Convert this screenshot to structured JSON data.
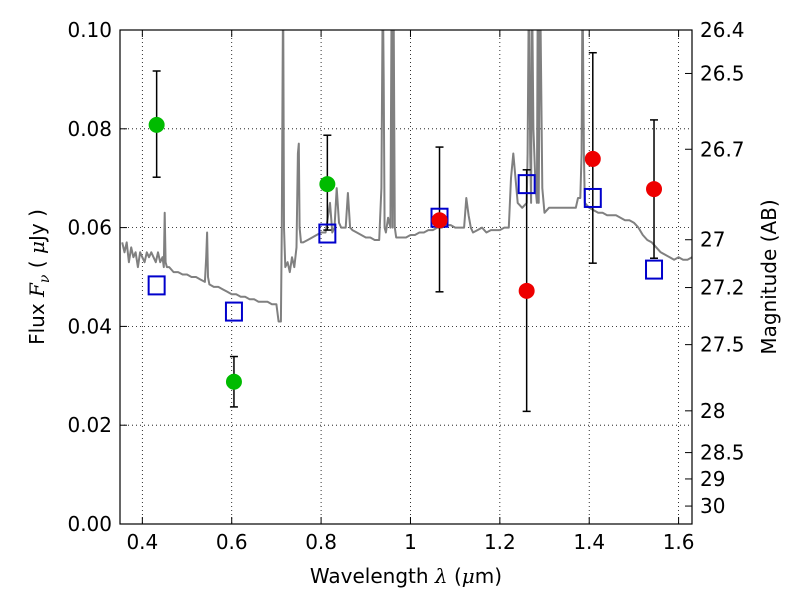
{
  "chart_data": {
    "type": "scatter",
    "xlabel": "Wavelength",
    "xlabel_symbol": "λ",
    "xlabel_unit_prefix": "(",
    "xlabel_unit_mu": "μ",
    "xlabel_unit_suffix": "m)",
    "ylabel_text": "Flux",
    "ylabel_symbol": "F",
    "ylabel_subscript": "ν",
    "ylabel_unit_open": "(",
    "ylabel_unit_mu": "μ",
    "ylabel_unit_text": "Jy",
    "ylabel_unit_close": ")",
    "y2label": "Magnitude (AB)",
    "xlim": [
      0.35,
      1.63
    ],
    "ylim": [
      0.0,
      0.1
    ],
    "x_ticks": [
      {
        "value": 0.4,
        "label": "0.4"
      },
      {
        "value": 0.6,
        "label": "0.6"
      },
      {
        "value": 0.8,
        "label": "0.8"
      },
      {
        "value": 1.0,
        "label": "1"
      },
      {
        "value": 1.2,
        "label": "1.2"
      },
      {
        "value": 1.4,
        "label": "1.4"
      },
      {
        "value": 1.6,
        "label": "1.6"
      }
    ],
    "y_ticks": [
      {
        "value": 0.0,
        "label": "0.00"
      },
      {
        "value": 0.02,
        "label": "0.02"
      },
      {
        "value": 0.04,
        "label": "0.04"
      },
      {
        "value": 0.06,
        "label": "0.06"
      },
      {
        "value": 0.08,
        "label": "0.08"
      },
      {
        "value": 0.1,
        "label": "0.10"
      }
    ],
    "mag_ticks": [
      {
        "value": 26.4,
        "label": "26.4"
      },
      {
        "value": 26.5,
        "label": "26.5"
      },
      {
        "value": 26.7,
        "label": "26.7"
      },
      {
        "value": 27.0,
        "label": "27"
      },
      {
        "value": 27.2,
        "label": "27.2"
      },
      {
        "value": 27.5,
        "label": "27.5"
      },
      {
        "value": 28.0,
        "label": "28"
      },
      {
        "value": 28.5,
        "label": "28.5"
      },
      {
        "value": 29.0,
        "label": "29"
      },
      {
        "value": 30.0,
        "label": "30"
      }
    ],
    "grid": true,
    "series": [
      {
        "name": "model-spectrum",
        "kind": "line",
        "color": "#808080",
        "x": [
          0.355,
          0.36,
          0.365,
          0.37,
          0.375,
          0.38,
          0.385,
          0.39,
          0.395,
          0.4,
          0.405,
          0.41,
          0.415,
          0.42,
          0.425,
          0.43,
          0.435,
          0.44,
          0.445,
          0.448,
          0.45,
          0.452,
          0.455,
          0.46,
          0.47,
          0.48,
          0.49,
          0.5,
          0.51,
          0.52,
          0.53,
          0.54,
          0.543,
          0.545,
          0.547,
          0.55,
          0.56,
          0.57,
          0.58,
          0.59,
          0.6,
          0.61,
          0.62,
          0.63,
          0.64,
          0.65,
          0.66,
          0.67,
          0.68,
          0.69,
          0.7,
          0.705,
          0.71,
          0.712,
          0.715,
          0.717,
          0.72,
          0.725,
          0.73,
          0.735,
          0.74,
          0.745,
          0.748,
          0.75,
          0.752,
          0.755,
          0.76,
          0.77,
          0.78,
          0.79,
          0.8,
          0.81,
          0.815,
          0.82,
          0.825,
          0.83,
          0.835,
          0.84,
          0.845,
          0.85,
          0.855,
          0.86,
          0.865,
          0.87,
          0.88,
          0.89,
          0.9,
          0.91,
          0.92,
          0.93,
          0.935,
          0.938,
          0.94,
          0.942,
          0.945,
          0.95,
          0.955,
          0.958,
          0.96,
          0.962,
          0.965,
          0.968,
          0.97,
          0.975,
          0.98,
          0.99,
          1.0,
          1.01,
          1.02,
          1.03,
          1.04,
          1.05,
          1.06,
          1.07,
          1.08,
          1.09,
          1.1,
          1.11,
          1.12,
          1.125,
          1.13,
          1.135,
          1.14,
          1.15,
          1.16,
          1.17,
          1.18,
          1.19,
          1.2,
          1.21,
          1.22,
          1.225,
          1.23,
          1.235,
          1.24,
          1.25,
          1.26,
          1.262,
          1.265,
          1.268,
          1.27,
          1.272,
          1.275,
          1.28,
          1.283,
          1.285,
          1.287,
          1.29,
          1.295,
          1.3,
          1.31,
          1.32,
          1.33,
          1.34,
          1.35,
          1.36,
          1.37,
          1.375,
          1.38,
          1.383,
          1.385,
          1.388,
          1.39,
          1.4,
          1.41,
          1.42,
          1.43,
          1.44,
          1.45,
          1.46,
          1.47,
          1.48,
          1.49,
          1.5,
          1.51,
          1.52,
          1.53,
          1.54,
          1.55,
          1.56,
          1.57,
          1.58,
          1.59,
          1.6,
          1.61,
          1.62,
          1.63
        ],
        "y": [
          0.057,
          0.055,
          0.057,
          0.053,
          0.056,
          0.054,
          0.055,
          0.052,
          0.055,
          0.054,
          0.053,
          0.055,
          0.054,
          0.055,
          0.054,
          0.053,
          0.055,
          0.053,
          0.054,
          0.052,
          0.063,
          0.053,
          0.052,
          0.052,
          0.051,
          0.051,
          0.0505,
          0.0505,
          0.05,
          0.05,
          0.0495,
          0.049,
          0.054,
          0.059,
          0.05,
          0.0485,
          0.048,
          0.048,
          0.0475,
          0.047,
          0.0465,
          0.0465,
          0.046,
          0.046,
          0.0455,
          0.0455,
          0.045,
          0.045,
          0.045,
          0.0445,
          0.0445,
          0.041,
          0.041,
          0.06,
          0.11,
          0.06,
          0.052,
          0.053,
          0.051,
          0.054,
          0.052,
          0.056,
          0.075,
          0.077,
          0.06,
          0.057,
          0.057,
          0.0575,
          0.058,
          0.0585,
          0.059,
          0.059,
          0.062,
          0.065,
          0.059,
          0.06,
          0.068,
          0.061,
          0.06,
          0.06,
          0.06,
          0.067,
          0.06,
          0.0595,
          0.059,
          0.0585,
          0.058,
          0.058,
          0.0575,
          0.0575,
          0.068,
          0.11,
          0.09,
          0.06,
          0.059,
          0.062,
          0.06,
          0.11,
          0.06,
          0.11,
          0.06,
          0.058,
          0.058,
          0.058,
          0.058,
          0.058,
          0.0585,
          0.0585,
          0.059,
          0.059,
          0.0595,
          0.0595,
          0.06,
          0.06,
          0.0605,
          0.0605,
          0.06,
          0.06,
          0.06,
          0.066,
          0.0625,
          0.06,
          0.059,
          0.0595,
          0.06,
          0.059,
          0.0595,
          0.0595,
          0.0595,
          0.06,
          0.06,
          0.07,
          0.075,
          0.07,
          0.065,
          0.064,
          0.065,
          0.075,
          0.11,
          0.075,
          0.065,
          0.11,
          0.08,
          0.068,
          0.065,
          0.11,
          0.065,
          0.11,
          0.068,
          0.063,
          0.064,
          0.064,
          0.064,
          0.064,
          0.064,
          0.064,
          0.064,
          0.066,
          0.066,
          0.075,
          0.11,
          0.075,
          0.065,
          0.064,
          0.0635,
          0.063,
          0.063,
          0.0625,
          0.0625,
          0.0625,
          0.062,
          0.0615,
          0.0615,
          0.061,
          0.06,
          0.0585,
          0.0575,
          0.057,
          0.056,
          0.055,
          0.0545,
          0.054,
          0.0535,
          0.054,
          0.0535,
          0.0535,
          0.054
        ]
      },
      {
        "name": "observed-flux",
        "kind": "points",
        "marker": "circle",
        "points": [
          {
            "x": 0.432,
            "y": 0.0808,
            "err_low": 0.0702,
            "err_high": 0.0917,
            "color": "#00bb00"
          },
          {
            "x": 0.605,
            "y": 0.0288,
            "err_low": 0.0237,
            "err_high": 0.0339,
            "color": "#00bb00"
          },
          {
            "x": 0.814,
            "y": 0.0688,
            "err_low": 0.0595,
            "err_high": 0.0787,
            "color": "#00bb00"
          },
          {
            "x": 1.065,
            "y": 0.0615,
            "err_low": 0.047,
            "err_high": 0.0763,
            "color": "#ee0000"
          },
          {
            "x": 1.26,
            "y": 0.0472,
            "err_low": 0.0228,
            "err_high": 0.0717,
            "color": "#ee0000"
          },
          {
            "x": 1.408,
            "y": 0.0739,
            "err_low": 0.0528,
            "err_high": 0.0954,
            "color": "#ee0000"
          },
          {
            "x": 1.545,
            "y": 0.0678,
            "err_low": 0.0538,
            "err_high": 0.0818,
            "color": "#ee0000"
          }
        ]
      },
      {
        "name": "model-flux",
        "kind": "points",
        "marker": "square",
        "color": "#0000cc",
        "points": [
          {
            "x": 0.432,
            "y": 0.0483
          },
          {
            "x": 0.605,
            "y": 0.043
          },
          {
            "x": 0.814,
            "y": 0.0588
          },
          {
            "x": 1.065,
            "y": 0.062
          },
          {
            "x": 1.26,
            "y": 0.0688
          },
          {
            "x": 1.408,
            "y": 0.066
          },
          {
            "x": 1.545,
            "y": 0.0515
          }
        ]
      }
    ]
  }
}
